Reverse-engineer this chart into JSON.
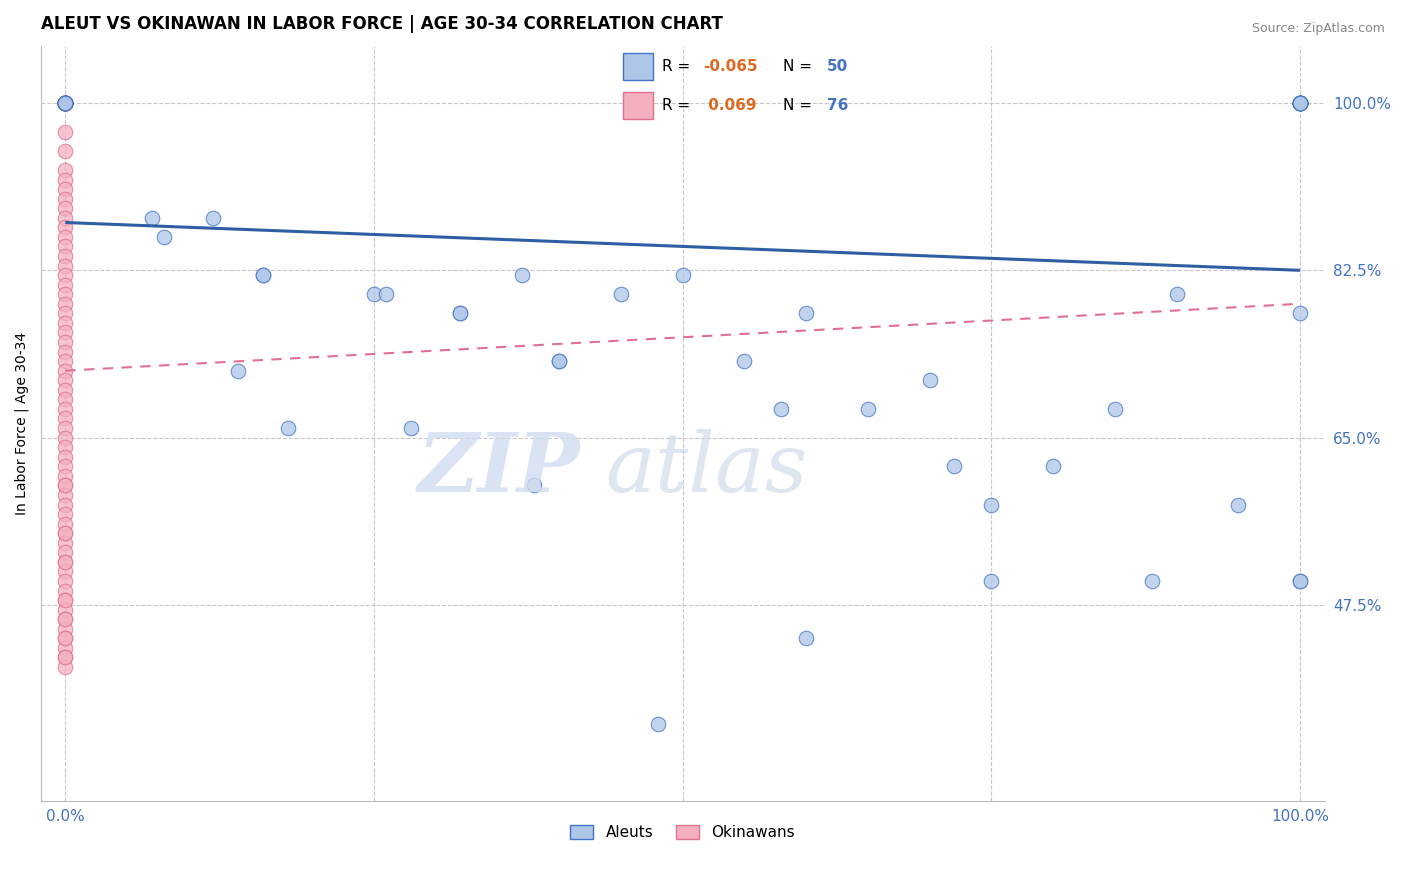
{
  "title": "ALEUT VS OKINAWAN IN LABOR FORCE | AGE 30-34 CORRELATION CHART",
  "source": "Source: ZipAtlas.com",
  "ylabel": "In Labor Force | Age 30-34",
  "xlim": [
    -0.02,
    1.02
  ],
  "ylim": [
    0.27,
    1.06
  ],
  "xtick_positions": [
    0.0,
    1.0
  ],
  "xtick_labels": [
    "0.0%",
    "100.0%"
  ],
  "ytick_values": [
    0.475,
    0.65,
    0.825,
    1.0
  ],
  "ytick_labels": [
    "47.5%",
    "65.0%",
    "82.5%",
    "100.0%"
  ],
  "legend_blue_r": "-0.065",
  "legend_blue_n": "50",
  "legend_pink_r": "0.069",
  "legend_pink_n": "76",
  "blue_fill": "#aec6e8",
  "blue_edge": "#4472c4",
  "pink_fill": "#f4b0be",
  "pink_edge": "#e07090",
  "blue_line_color": "#2e5fa3",
  "pink_line_color": "#e07090",
  "grid_color": "#c8c8c8",
  "background_color": "#ffffff",
  "title_fontsize": 12,
  "axis_label_fontsize": 10,
  "tick_fontsize": 11,
  "legend_r_color": "#e06820",
  "legend_n_color": "#4472c4",
  "aleut_x": [
    0.0,
    0.0,
    0.0,
    0.0,
    0.0,
    0.0,
    0.07,
    0.12,
    0.14,
    0.16,
    0.16,
    0.25,
    0.26,
    0.32,
    0.32,
    0.37,
    0.4,
    0.4,
    0.45,
    0.5,
    0.55,
    0.58,
    0.6,
    0.65,
    0.7,
    0.72,
    0.75,
    0.8,
    0.85,
    0.88,
    0.9,
    0.95,
    1.0,
    1.0,
    1.0,
    1.0,
    1.0,
    1.0,
    1.0,
    1.0,
    1.0,
    1.0,
    1.0,
    0.08,
    0.18,
    0.28,
    0.38,
    0.48,
    0.6,
    0.75
  ],
  "aleut_y": [
    1.0,
    1.0,
    1.0,
    1.0,
    1.0,
    1.0,
    0.88,
    0.88,
    0.72,
    0.82,
    0.82,
    0.8,
    0.8,
    0.78,
    0.78,
    0.82,
    0.73,
    0.73,
    0.8,
    0.82,
    0.73,
    0.68,
    0.78,
    0.68,
    0.71,
    0.62,
    0.5,
    0.62,
    0.68,
    0.5,
    0.8,
    0.58,
    1.0,
    1.0,
    1.0,
    1.0,
    1.0,
    1.0,
    1.0,
    1.0,
    0.5,
    0.5,
    0.78,
    0.86,
    0.66,
    0.66,
    0.6,
    0.35,
    0.44,
    0.58
  ],
  "okinawan_x": [
    0.0,
    0.0,
    0.0,
    0.0,
    0.0,
    0.0,
    0.0,
    0.0,
    0.0,
    0.0,
    0.0,
    0.0,
    0.0,
    0.0,
    0.0,
    0.0,
    0.0,
    0.0,
    0.0,
    0.0,
    0.0,
    0.0,
    0.0,
    0.0,
    0.0,
    0.0,
    0.0,
    0.0,
    0.0,
    0.0,
    0.0,
    0.0,
    0.0,
    0.0,
    0.0,
    0.0,
    0.0,
    0.0,
    0.0,
    0.0,
    0.0,
    0.0,
    0.0,
    0.0,
    0.0,
    0.0,
    0.0,
    0.0,
    0.0,
    0.0,
    0.0,
    0.0,
    0.0,
    0.0,
    0.0,
    0.0,
    0.0,
    0.0,
    0.0,
    0.0,
    0.0,
    0.0,
    0.0,
    0.0,
    0.0,
    0.0,
    0.0,
    0.0,
    0.0,
    0.0,
    0.0,
    0.0,
    0.0,
    0.0,
    0.0,
    0.0
  ],
  "okinawan_y": [
    1.0,
    1.0,
    1.0,
    1.0,
    1.0,
    1.0,
    1.0,
    1.0,
    1.0,
    1.0,
    1.0,
    1.0,
    1.0,
    1.0,
    0.97,
    0.95,
    0.93,
    0.92,
    0.91,
    0.9,
    0.89,
    0.88,
    0.87,
    0.86,
    0.85,
    0.84,
    0.83,
    0.82,
    0.81,
    0.8,
    0.79,
    0.78,
    0.77,
    0.76,
    0.75,
    0.74,
    0.73,
    0.72,
    0.71,
    0.7,
    0.69,
    0.68,
    0.67,
    0.66,
    0.65,
    0.64,
    0.63,
    0.62,
    0.61,
    0.6,
    0.59,
    0.58,
    0.57,
    0.56,
    0.55,
    0.54,
    0.53,
    0.52,
    0.51,
    0.5,
    0.49,
    0.48,
    0.47,
    0.46,
    0.45,
    0.44,
    0.43,
    0.42,
    0.41,
    0.42,
    0.44,
    0.46,
    0.48,
    0.52,
    0.55,
    0.6
  ],
  "blue_trend_x": [
    0.0,
    1.0
  ],
  "blue_trend_y": [
    0.875,
    0.825
  ],
  "pink_trend_x": [
    0.0,
    1.0
  ],
  "pink_trend_y": [
    0.72,
    0.79
  ]
}
